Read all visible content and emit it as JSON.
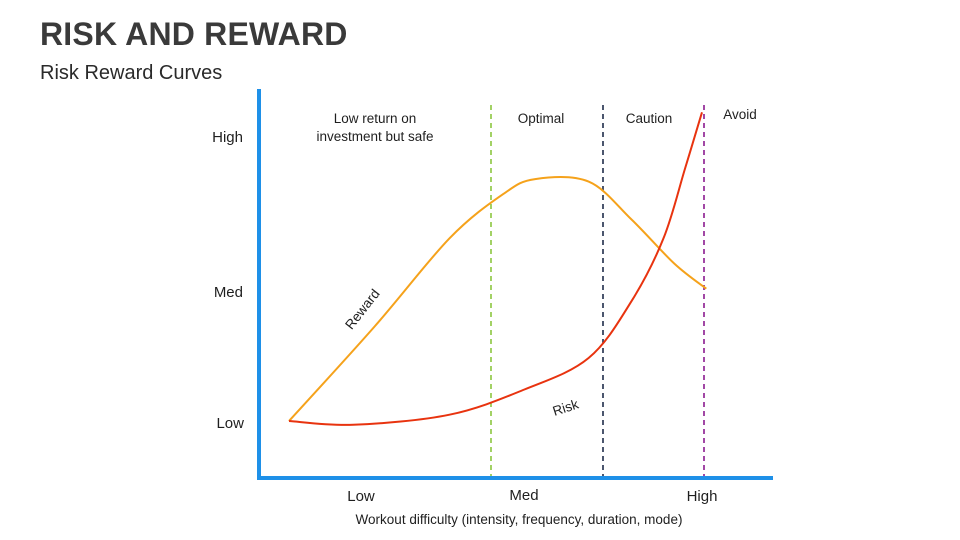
{
  "slide": {
    "title": "RISK AND REWARD",
    "subtitle": "Risk Reward Curves"
  },
  "colors": {
    "axis": "#1e90e8",
    "reward": "#f5a21b",
    "risk": "#e8330f",
    "divider_low": "#8cc63f",
    "divider_med": "#1f2d4a",
    "divider_high": "#8b1a8f"
  },
  "chart_data": {
    "type": "line",
    "xlabel": "Workout difficulty (intensity, frequency, duration, mode)",
    "x_ticks": [
      "Low",
      "Med",
      "High"
    ],
    "y_ticks": [
      "Low",
      "Med",
      "High"
    ],
    "zones": [
      {
        "label": "Low return on investment but safe"
      },
      {
        "label": "Optimal"
      },
      {
        "label": "Caution"
      },
      {
        "label": "Avoid"
      }
    ],
    "series": [
      {
        "name": "Reward",
        "x": [
          0.0,
          0.4,
          0.75,
          1.0,
          1.15,
          1.4,
          1.6,
          1.8,
          1.95
        ],
        "y": [
          0.0,
          0.75,
          1.45,
          1.8,
          1.92,
          1.9,
          1.6,
          1.25,
          1.05
        ]
      },
      {
        "name": "Risk",
        "x": [
          0.0,
          0.3,
          0.75,
          1.1,
          1.4,
          1.6,
          1.75,
          1.85,
          1.93
        ],
        "y": [
          0.0,
          -0.03,
          0.05,
          0.25,
          0.5,
          0.95,
          1.45,
          2.0,
          2.45
        ]
      }
    ]
  }
}
